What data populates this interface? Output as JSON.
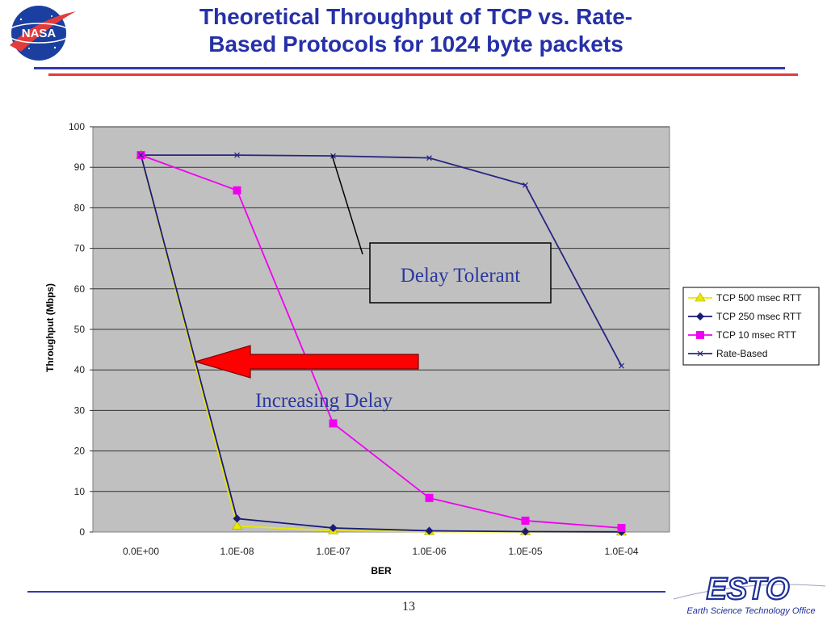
{
  "slide": {
    "title_line1": "Theoretical Throughput of TCP vs. Rate-",
    "title_line2": "Based Protocols for 1024 byte packets",
    "page_number": "13",
    "logo_left_text": "NASA",
    "logo_right_text": "ESTO",
    "logo_right_subtitle": "Earth Science Technology Office",
    "colors": {
      "title": "#2630a8",
      "rule_blue": "#3338b0",
      "rule_red": "#e23b3b"
    }
  },
  "chart_data": {
    "type": "line",
    "xlabel": "BER",
    "ylabel": "Throughput (Mbps)",
    "categories": [
      "0.0E+00",
      "1.0E-08",
      "1.0E-07",
      "1.0E-06",
      "1.0E-05",
      "1.0E-04"
    ],
    "yticks": [
      "0",
      "10",
      "20",
      "30",
      "40",
      "50",
      "60",
      "70",
      "80",
      "90",
      "100"
    ],
    "ylim": [
      0,
      100
    ],
    "grid": true,
    "legend_position": "right",
    "series": [
      {
        "name": "TCP 500 msec RTT",
        "color": "#e8e800",
        "marker": "triangle",
        "values": [
          93,
          1.5,
          0.3,
          0.1,
          0.05,
          0.02
        ]
      },
      {
        "name": "TCP 250 msec RTT",
        "color": "#1a1a78",
        "marker": "diamond",
        "values": [
          93,
          3.3,
          1,
          0.3,
          0.1,
          0.03
        ]
      },
      {
        "name": "TCP 10 msec RTT",
        "color": "#f000f0",
        "marker": "square",
        "values": [
          93,
          84.3,
          26.8,
          8.4,
          2.8,
          1
        ]
      },
      {
        "name": "Rate-Based",
        "color": "#262680",
        "marker": "x",
        "values": [
          93,
          93,
          92.8,
          92.3,
          85.6,
          41
        ]
      }
    ],
    "annotations": {
      "box_label": "Delay Tolerant",
      "arrow_label": "Increasing Delay"
    }
  }
}
